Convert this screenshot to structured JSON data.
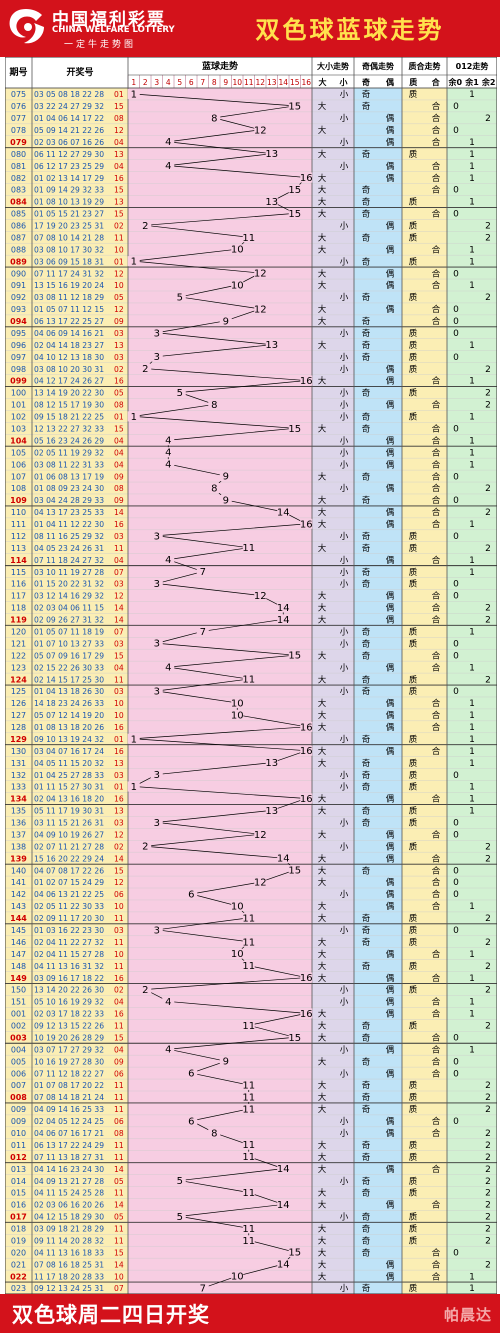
{
  "header": {
    "logo_cn": "中国福利彩票",
    "logo_en": "CHINA WELFARE LOTTERY",
    "logo_sub": "一定牛走势图",
    "title": "双色球蓝球走势"
  },
  "footer": {
    "text": "双色球周二四日开奖",
    "watermark": "帕晨达"
  },
  "colors": {
    "header_bg": "#d3121b",
    "title": "#ffe24d",
    "issue_col": "#fbeeb4",
    "numbers_col": "#fbeeb4",
    "blue_zone": "#f7cde2",
    "size_zone": "#ddd6ea",
    "parity_zone": "#bfe3f7",
    "prime_zone": "#fbeeb4",
    "mod_zone": "#d2f1d2",
    "line": "#000000"
  },
  "chart_data": {
    "type": "table",
    "title": "双色球蓝球走势",
    "columns": {
      "issue": "期号",
      "numbers": "开奖号",
      "blue": "蓝球走势",
      "size": "大小走势",
      "parity": "奇偶走势",
      "prime": "质合走势",
      "mod": "012走势"
    },
    "blue_cells": [
      "1",
      "2",
      "3",
      "4",
      "5",
      "6",
      "7",
      "8",
      "9",
      "10",
      "11",
      "12",
      "13",
      "14",
      "15",
      "16"
    ],
    "size_sub": [
      "大",
      "小"
    ],
    "parity_sub": [
      "奇",
      "偶"
    ],
    "prime_sub": [
      "质",
      "合"
    ],
    "mod_sub": [
      "余0",
      "余1",
      "余2"
    ],
    "rows": [
      {
        "issue": "075",
        "numbers": "03 05 08 18 22 28",
        "blue": 1
      },
      {
        "issue": "076",
        "numbers": "03 22 24 27 29 32",
        "blue": 15
      },
      {
        "issue": "077",
        "numbers": "01 04 06 14 17 22",
        "blue": 8
      },
      {
        "issue": "078",
        "numbers": "05 09 14 21 22 26",
        "blue": 12
      },
      {
        "issue": "079",
        "numbers": "02 03 06 07 16 26",
        "blue": 4
      },
      {
        "issue": "080",
        "numbers": "06 11 12 27 29 30",
        "blue": 13
      },
      {
        "issue": "081",
        "numbers": "06 12 17 23 25 29",
        "blue": 4
      },
      {
        "issue": "082",
        "numbers": "01 02 13 14 17 29",
        "blue": 16
      },
      {
        "issue": "083",
        "numbers": "01 09 14 29 32 33",
        "blue": 15
      },
      {
        "issue": "084",
        "numbers": "01 08 10 13 19 29",
        "blue": 13
      },
      {
        "issue": "085",
        "numbers": "01 05 15 21 23 27",
        "blue": 15
      },
      {
        "issue": "086",
        "numbers": "17 19 20 23 25 31",
        "blue": 2
      },
      {
        "issue": "087",
        "numbers": "07 08 10 14 21 28",
        "blue": 11
      },
      {
        "issue": "088",
        "numbers": "03 08 10 17 30 32",
        "blue": 10
      },
      {
        "issue": "089",
        "numbers": "03 06 09 15 18 31",
        "blue": 1
      },
      {
        "issue": "090",
        "numbers": "07 11 17 24 31 32",
        "blue": 12
      },
      {
        "issue": "091",
        "numbers": "13 15 16 19 20 24",
        "blue": 10
      },
      {
        "issue": "092",
        "numbers": "03 08 11 12 18 29",
        "blue": 5
      },
      {
        "issue": "093",
        "numbers": "01 05 07 11 12 15",
        "blue": 12
      },
      {
        "issue": "094",
        "numbers": "06 13 17 22 25 27",
        "blue": 9
      },
      {
        "issue": "095",
        "numbers": "04 06 09 14 16 21",
        "blue": 3
      },
      {
        "issue": "096",
        "numbers": "02 04 14 18 23 27",
        "blue": 13
      },
      {
        "issue": "097",
        "numbers": "04 10 12 13 18 30",
        "blue": 3
      },
      {
        "issue": "098",
        "numbers": "03 08 10 20 30 31",
        "blue": 2
      },
      {
        "issue": "099",
        "numbers": "04 12 17 24 26 27",
        "blue": 16
      },
      {
        "issue": "100",
        "numbers": "13 14 19 20 22 30",
        "blue": 5
      },
      {
        "issue": "101",
        "numbers": "08 12 15 17 19 30",
        "blue": 8
      },
      {
        "issue": "102",
        "numbers": "09 15 18 21 22 25",
        "blue": 1
      },
      {
        "issue": "103",
        "numbers": "12 13 22 27 32 33",
        "blue": 15
      },
      {
        "issue": "104",
        "numbers": "05 16 23 24 26 29",
        "blue": 4
      },
      {
        "issue": "105",
        "numbers": "02 05 11 19 29 32",
        "blue": 4
      },
      {
        "issue": "106",
        "numbers": "03 08 11 22 31 33",
        "blue": 4
      },
      {
        "issue": "107",
        "numbers": "01 06 08 13 17 19",
        "blue": 9
      },
      {
        "issue": "108",
        "numbers": "01 08 09 23 24 30",
        "blue": 8
      },
      {
        "issue": "109",
        "numbers": "03 04 24 28 29 33",
        "blue": 9
      },
      {
        "issue": "110",
        "numbers": "04 13 17 23 25 33",
        "blue": 14
      },
      {
        "issue": "111",
        "numbers": "01 04 11 12 22 30",
        "blue": 16
      },
      {
        "issue": "112",
        "numbers": "08 11 16 25 29 32",
        "blue": 3
      },
      {
        "issue": "113",
        "numbers": "04 05 23 24 26 31",
        "blue": 11
      },
      {
        "issue": "114",
        "numbers": "07 11 18 24 27 32",
        "blue": 4
      },
      {
        "issue": "115",
        "numbers": "03 10 11 19 27 28",
        "blue": 7
      },
      {
        "issue": "116",
        "numbers": "01 15 20 22 31 32",
        "blue": 3
      },
      {
        "issue": "117",
        "numbers": "03 12 14 16 29 32",
        "blue": 12
      },
      {
        "issue": "118",
        "numbers": "02 03 04 06 11 15",
        "blue": 14
      },
      {
        "issue": "119",
        "numbers": "02 09 26 27 31 32",
        "blue": 14
      },
      {
        "issue": "120",
        "numbers": "01 05 07 11 18 19",
        "blue": 7
      },
      {
        "issue": "121",
        "numbers": "01 07 10 13 27 33",
        "blue": 3
      },
      {
        "issue": "122",
        "numbers": "05 07 09 16 17 29",
        "blue": 15
      },
      {
        "issue": "123",
        "numbers": "02 15 22 26 30 33",
        "blue": 4
      },
      {
        "issue": "124",
        "numbers": "02 14 15 17 25 30",
        "blue": 11
      },
      {
        "issue": "125",
        "numbers": "01 04 13 18 26 30",
        "blue": 3
      },
      {
        "issue": "126",
        "numbers": "14 18 23 24 26 33",
        "blue": 10
      },
      {
        "issue": "127",
        "numbers": "05 07 12 14 19 20",
        "blue": 10
      },
      {
        "issue": "128",
        "numbers": "01 08 13 18 20 26",
        "blue": 16
      },
      {
        "issue": "129",
        "numbers": "09 10 13 19 24 32",
        "blue": 1
      },
      {
        "issue": "130",
        "numbers": "03 04 07 16 17 24",
        "blue": 16
      },
      {
        "issue": "131",
        "numbers": "04 05 11 15 20 32",
        "blue": 13
      },
      {
        "issue": "132",
        "numbers": "01 04 25 27 28 33",
        "blue": 3
      },
      {
        "issue": "133",
        "numbers": "01 11 15 27 30 31",
        "blue": 1
      },
      {
        "issue": "134",
        "numbers": "02 04 13 16 18 20",
        "blue": 16
      },
      {
        "issue": "135",
        "numbers": "05 11 17 19 30 31",
        "blue": 13
      },
      {
        "issue": "136",
        "numbers": "03 11 15 21 26 31",
        "blue": 3
      },
      {
        "issue": "137",
        "numbers": "04 09 10 19 26 27",
        "blue": 12
      },
      {
        "issue": "138",
        "numbers": "02 07 11 21 27 28",
        "blue": 2
      },
      {
        "issue": "139",
        "numbers": "15 16 20 22 29 24",
        "blue": 14
      },
      {
        "issue": "140",
        "numbers": "04 07 08 17 22 26",
        "blue": 15
      },
      {
        "issue": "141",
        "numbers": "01 02 07 15 24 29",
        "blue": 12
      },
      {
        "issue": "142",
        "numbers": "04 06 13 21 22 25",
        "blue": 6
      },
      {
        "issue": "143",
        "numbers": "02 05 11 22 30 33",
        "blue": 10
      },
      {
        "issue": "144",
        "numbers": "02 09 11 17 20 30",
        "blue": 11
      },
      {
        "issue": "145",
        "numbers": "01 03 16 22 23 30",
        "blue": 3
      },
      {
        "issue": "146",
        "numbers": "02 04 11 22 27 32",
        "blue": 11
      },
      {
        "issue": "147",
        "numbers": "02 04 11 15 27 28",
        "blue": 10
      },
      {
        "issue": "148",
        "numbers": "04 11 13 16 31 32",
        "blue": 11
      },
      {
        "issue": "149",
        "numbers": "03 09 16 17 18 22",
        "blue": 16
      },
      {
        "issue": "150",
        "numbers": "13 14 20 22 26 30",
        "blue": 2
      },
      {
        "issue": "151",
        "numbers": "05 10 16 19 29 32",
        "blue": 4
      },
      {
        "issue": "001",
        "numbers": "02 03 17 18 22 33",
        "blue": 16
      },
      {
        "issue": "002",
        "numbers": "09 12 13 15 22 26",
        "blue": 11
      },
      {
        "issue": "003",
        "numbers": "10 19 20 26 28 29",
        "blue": 15
      },
      {
        "issue": "004",
        "numbers": "03 07 17 27 29 32",
        "blue": 4
      },
      {
        "issue": "005",
        "numbers": "10 16 19 27 28 30",
        "blue": 9
      },
      {
        "issue": "006",
        "numbers": "07 11 12 18 22 27",
        "blue": 6
      },
      {
        "issue": "007",
        "numbers": "01 07 08 17 20 22",
        "blue": 11
      },
      {
        "issue": "008",
        "numbers": "07 08 14 18 21 24",
        "blue": 11
      },
      {
        "issue": "009",
        "numbers": "04 09 14 16 25 33",
        "blue": 11
      },
      {
        "issue": "009",
        "numbers": "02 04 05 12 24 25",
        "blue": 6
      },
      {
        "issue": "010",
        "numbers": "04 06 07 16 17 21",
        "blue": 8
      },
      {
        "issue": "011",
        "numbers": "06 13 17 22 24 29",
        "blue": 11
      },
      {
        "issue": "012",
        "numbers": "07 11 13 18 27 31",
        "blue": 11
      },
      {
        "issue": "013",
        "numbers": "04 14 16 23 24 30",
        "blue": 14
      },
      {
        "issue": "014",
        "numbers": "04 09 13 21 27 28",
        "blue": 5
      },
      {
        "issue": "015",
        "numbers": "04 11 15 24 25 28",
        "blue": 11
      },
      {
        "issue": "016",
        "numbers": "02 03 06 16 20 26",
        "blue": 14
      },
      {
        "issue": "017",
        "numbers": "04 12 15 18 29 30",
        "blue": 5
      },
      {
        "issue": "018",
        "numbers": "03 09 18 21 28 29",
        "blue": 11
      },
      {
        "issue": "019",
        "numbers": "09 11 14 20 28 32",
        "blue": 11
      },
      {
        "issue": "020",
        "numbers": "04 11 13 16 18 33",
        "blue": 15
      },
      {
        "issue": "021",
        "numbers": "07 08 16 18 25 31",
        "blue": 14
      },
      {
        "issue": "022",
        "numbers": "11 17 18 20 28 33",
        "blue": 10
      },
      {
        "issue": "023",
        "numbers": "09 12 13 24 25 31",
        "blue": 7
      }
    ]
  }
}
